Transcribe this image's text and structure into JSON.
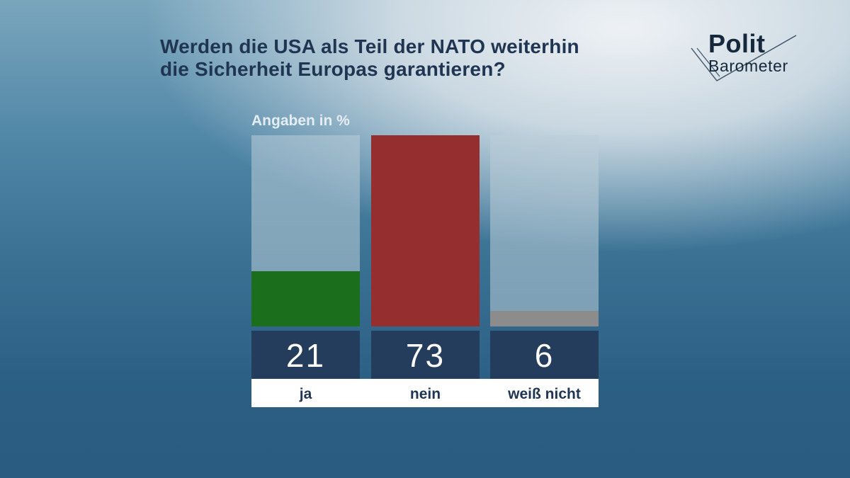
{
  "title": {
    "line1": "Werden die USA als Teil der NATO weiterhin",
    "line2": "die Sicherheit Europas garantieren?"
  },
  "logo": {
    "line1": "Polit",
    "line2": "Barometer"
  },
  "colors": {
    "ja": "#1b6e1b",
    "nein": "#952e2f",
    "weiss_nicht": "#8c8c8c",
    "track": "#bccdd8",
    "value_box": "#243d5c",
    "label_box": "#ffffff",
    "label_text": "#1f3552"
  },
  "chart_data": {
    "type": "bar",
    "unit_label": "Angaben in %",
    "categories": [
      "ja",
      "nein",
      "weiß nicht"
    ],
    "values": [
      21,
      73,
      6
    ],
    "ylim": [
      0,
      73
    ],
    "grid": false
  }
}
